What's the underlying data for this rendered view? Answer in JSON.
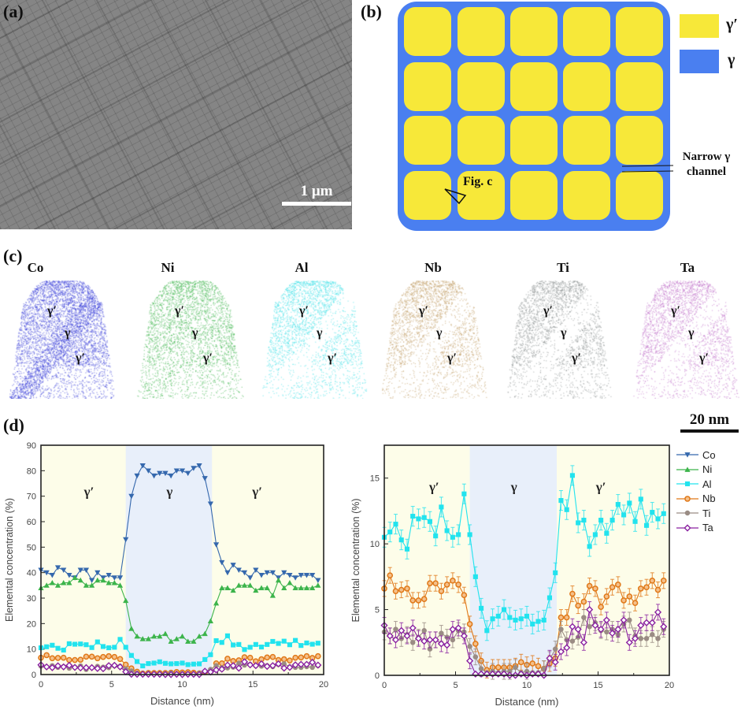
{
  "panel_a": {
    "label": "(a)",
    "scale_bar": "1 μm"
  },
  "panel_b": {
    "label": "(b)",
    "legend": [
      {
        "label": "γ′",
        "color": "#f7e839"
      },
      {
        "label": "γ",
        "color": "#4a7ff0"
      }
    ],
    "channel_annotation": [
      "Narrow γ",
      "channel"
    ],
    "fig_annotation": "Fig. c"
  },
  "panel_c": {
    "label": "(c)",
    "scale_bar": "20 nm",
    "elements": [
      {
        "name": "Co",
        "color": "#3a3fd8",
        "phases": [
          "γ′",
          "γ",
          "γ′"
        ]
      },
      {
        "name": "Ni",
        "color": "#3cb44b",
        "phases": [
          "γ′",
          "γ",
          "γ′"
        ]
      },
      {
        "name": "Al",
        "color": "#3de0e8",
        "phases": [
          "γ′",
          "γ",
          "γ′"
        ]
      },
      {
        "name": "Nb",
        "color": "#c09a60",
        "phases": [
          "γ′",
          "γ",
          "γ′"
        ]
      },
      {
        "name": "Ti",
        "color": "#8a9090",
        "phases": [
          "γ′",
          "γ",
          "γ′"
        ]
      },
      {
        "name": "Ta",
        "color": "#c070c8",
        "phases": [
          "γ′",
          "γ",
          "γ′"
        ]
      }
    ]
  },
  "panel_d": {
    "label": "(d)"
  },
  "chart_data": [
    {
      "type": "line",
      "xlabel": "Distance (nm)",
      "ylabel": "Elemental concentration (%)",
      "xlim": [
        0,
        20
      ],
      "ylim": [
        0,
        90
      ],
      "xticks": [
        "0",
        "5",
        "10",
        "15",
        "20"
      ],
      "yticks": [
        "0",
        "10",
        "20",
        "30",
        "40",
        "50",
        "60",
        "70",
        "80",
        "90"
      ],
      "gamma_region": [
        6.0,
        12.1
      ],
      "region_labels": [
        {
          "text": "γ′",
          "x": 3.4,
          "y": 70
        },
        {
          "text": "γ",
          "x": 9.1,
          "y": 70
        },
        {
          "text": "γ′",
          "x": 15.3,
          "y": 70
        }
      ],
      "series_ref": [
        "Co",
        "Ni",
        "Al",
        "Nb",
        "Ti",
        "Ta"
      ],
      "error_bars": false
    },
    {
      "type": "line",
      "xlabel": "Distance (nm)",
      "ylabel": "Elemental concentration (%)",
      "xlim": [
        0,
        20
      ],
      "ylim": [
        0,
        17.5
      ],
      "xticks": [
        "0",
        "5",
        "10",
        "15",
        "20"
      ],
      "yticks": [
        "0",
        "5",
        "10",
        "15"
      ],
      "gamma_region": [
        6.0,
        12.1
      ],
      "region_labels": [
        {
          "text": "γ′",
          "x": 3.5,
          "y": 14
        },
        {
          "text": "γ",
          "x": 9.1,
          "y": 14
        },
        {
          "text": "γ′",
          "x": 15.2,
          "y": 14
        }
      ],
      "series_ref": [
        "Al",
        "Nb",
        "Ti",
        "Ta"
      ],
      "error_bars": true,
      "legend": "right-outside"
    }
  ],
  "series": [
    {
      "name": "Co",
      "color": "#3568ad",
      "marker": "triangle-down",
      "values": [
        41,
        40,
        39,
        42,
        41,
        39,
        38,
        41,
        41,
        37,
        40,
        38,
        39,
        38,
        38,
        53,
        70,
        78,
        82,
        80,
        78,
        79,
        79,
        78,
        80,
        80,
        79,
        81,
        82,
        77,
        67,
        51,
        44,
        40,
        43,
        41,
        40,
        38,
        41,
        39,
        40,
        40,
        38,
        40,
        39,
        38,
        39,
        39,
        39,
        37
      ]
    },
    {
      "name": "Ni",
      "color": "#3cb44b",
      "marker": "triangle-up",
      "values": [
        34,
        35,
        36,
        35,
        36,
        36,
        38,
        37,
        35,
        35,
        37,
        37,
        36,
        36,
        35,
        29,
        18,
        15,
        14,
        14,
        15,
        15,
        16,
        13,
        14,
        15,
        13,
        13,
        15,
        16,
        21,
        28,
        34,
        34,
        33,
        35,
        35,
        35,
        33,
        34,
        34,
        31,
        37,
        34,
        36,
        34,
        34,
        34,
        34,
        35
      ]
    },
    {
      "name": "Al",
      "color": "#22e3ee",
      "marker": "square",
      "values": [
        10.5,
        10.9,
        11.5,
        10.3,
        9.6,
        12.1,
        11.9,
        12.0,
        11.7,
        10.6,
        12.8,
        11.0,
        10.5,
        10.7,
        13.8,
        10.7,
        7.5,
        5.1,
        3.4,
        4.3,
        4.5,
        5.0,
        4.4,
        4.2,
        4.3,
        4.5,
        3.9,
        4.1,
        4.2,
        5.9,
        7.8,
        13.3,
        12.6,
        15.2,
        11.6,
        11.8,
        9.8,
        10.7,
        11.8,
        10.8,
        11.8,
        13.0,
        12.2,
        13.1,
        11.7,
        13.4,
        11.4,
        12.4,
        11.9,
        12.3
      ]
    },
    {
      "name": "Nb",
      "color": "#e07818",
      "marker": "circle-open",
      "values": [
        6.6,
        7.6,
        6.4,
        6.5,
        6.6,
        5.7,
        5.7,
        5.8,
        7.0,
        7.0,
        6.4,
        6.9,
        7.2,
        6.9,
        6.1,
        3.9,
        2.4,
        1.1,
        0.4,
        0.6,
        0.6,
        0.6,
        0.6,
        0.7,
        1.0,
        0.8,
        0.9,
        0.7,
        0.5,
        0.9,
        1.3,
        4.4,
        4.4,
        6.2,
        5.3,
        5.6,
        6.8,
        6.6,
        5.2,
        6.0,
        6.7,
        6.9,
        5.7,
        6.0,
        5.5,
        6.6,
        6.7,
        7.2,
        6.5,
        7.2
      ]
    },
    {
      "name": "Ti",
      "color": "#9a8c84",
      "marker": "circle",
      "values": [
        3.3,
        3.0,
        3.5,
        2.8,
        3.1,
        2.5,
        2.9,
        3.4,
        2.0,
        2.7,
        3.2,
        2.9,
        2.7,
        3.4,
        3.3,
        2.2,
        1.4,
        0.5,
        0.2,
        0.3,
        0.2,
        0.3,
        0.3,
        0.6,
        0.2,
        0.3,
        0.2,
        0.2,
        0.5,
        1.2,
        2.0,
        3.5,
        2.7,
        2.6,
        2.9,
        4.4,
        3.7,
        4.0,
        3.4,
        3.3,
        3.5,
        3.1,
        3.9,
        4.2,
        3.0,
        2.8,
        2.8,
        3.1,
        2.8,
        3.5
      ]
    },
    {
      "name": "Ta",
      "color": "#8a22a0",
      "marker": "diamond-open",
      "values": [
        3.8,
        3.0,
        2.7,
        3.4,
        3.0,
        3.6,
        2.8,
        2.6,
        2.7,
        2.7,
        2.4,
        2.3,
        3.5,
        3.6,
        3.0,
        1.1,
        0.1,
        0.1,
        0.1,
        0.1,
        0.1,
        0.1,
        0.0,
        0.0,
        0.1,
        0.0,
        0.1,
        0.1,
        0.0,
        1.3,
        1.0,
        1.8,
        2.1,
        3.7,
        3.5,
        2.5,
        5.0,
        3.8,
        3.5,
        4.2,
        3.2,
        3.5,
        4.2,
        2.5,
        2.8,
        3.8,
        4.0,
        4.0,
        4.8,
        3.7
      ]
    }
  ],
  "x": [
    0,
    0.4,
    0.8,
    1.2,
    1.6,
    2.0,
    2.4,
    2.8,
    3.2,
    3.6,
    4.0,
    4.4,
    4.8,
    5.2,
    5.6,
    6.0,
    6.4,
    6.8,
    7.2,
    7.6,
    8.0,
    8.4,
    8.8,
    9.2,
    9.6,
    10.0,
    10.4,
    10.8,
    11.2,
    11.6,
    12.0,
    12.4,
    12.8,
    13.2,
    13.6,
    14.0,
    14.4,
    14.8,
    15.2,
    15.6,
    16.0,
    16.4,
    16.8,
    17.2,
    17.6,
    18.0,
    18.4,
    18.8,
    19.2,
    19.6
  ]
}
